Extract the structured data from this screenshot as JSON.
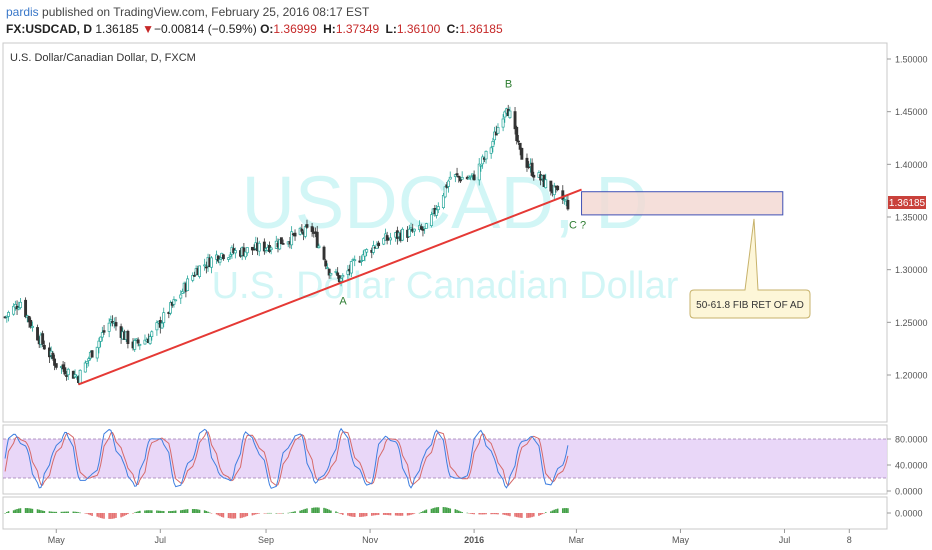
{
  "header": {
    "user": "pardis",
    "published": " published on TradingView.com, February 25, 2016 08:17 EST",
    "symbol": "FX:USDCAD, D",
    "last": "1.36185",
    "arrow": "▼",
    "change": "−0.00814 (−0.59%)",
    "o_label": "O:",
    "o_value": "1.36999",
    "h_label": "H:",
    "h_value": "1.37349",
    "l_label": "L:",
    "l_value": "1.36100",
    "c_label": "C:",
    "c_value": "1.36185"
  },
  "chart": {
    "legend_title": "U.S. Dollar/Canadian Dollar, D, FXCM",
    "watermark_symbol": "USDCAD, D",
    "watermark_name": "U.S. Dollar Canadian Dollar",
    "colors": {
      "up": "#26a69a",
      "down": "#333333",
      "trendline": "#e53935",
      "price_badge": "#c9413b",
      "stoch_k": "#3f7fe0",
      "stoch_d": "#d66a6a",
      "stoch_band": "#e7d3f7",
      "zone_fill": "#f3d9d4",
      "zone_border": "#3f51b5"
    },
    "last_price_label": "1.36185",
    "annotations": {
      "A": "A",
      "B": "B",
      "C": "C ?"
    },
    "callout_text": "50-61.8 FIB RET OF AD"
  },
  "chart_data": {
    "type": "candlestick",
    "price_axis": {
      "ticks": [
        1.5,
        1.45,
        1.4,
        1.35,
        1.3,
        1.25,
        1.2
      ],
      "tick_labels": [
        "1.50000",
        "1.45000",
        "1.40000",
        "1.35000",
        "1.30000",
        "1.25000",
        "1.20000"
      ],
      "range": [
        1.16,
        1.52
      ]
    },
    "stoch_axis": {
      "ticks": [
        80,
        40,
        0
      ],
      "tick_labels": [
        "80.0000",
        "40.0000",
        "0.0000"
      ],
      "upper": 80,
      "lower": 20
    },
    "macd_axis": {
      "tick_labels": [
        "0.0000"
      ]
    },
    "x_axis": {
      "labels": [
        "May",
        "Jul",
        "Sep",
        "Nov",
        "2016",
        "Mar",
        "May",
        "Jul",
        "8"
      ]
    },
    "price_path": [
      [
        "2015-04-01",
        1.255
      ],
      [
        "2015-04-10",
        1.27
      ],
      [
        "2015-04-17",
        1.245
      ],
      [
        "2015-05-01",
        1.21
      ],
      [
        "2015-05-14",
        1.198
      ],
      [
        "2015-05-22",
        1.222
      ],
      [
        "2015-06-02",
        1.252
      ],
      [
        "2015-06-15",
        1.228
      ],
      [
        "2015-06-25",
        1.236
      ],
      [
        "2015-07-10",
        1.27
      ],
      [
        "2015-07-22",
        1.3
      ],
      [
        "2015-08-05",
        1.315
      ],
      [
        "2015-08-20",
        1.318
      ],
      [
        "2015-09-01",
        1.322
      ],
      [
        "2015-09-15",
        1.33
      ],
      [
        "2015-09-28",
        1.338
      ],
      [
        "2015-10-08",
        1.3
      ],
      [
        "2015-10-15",
        1.29
      ],
      [
        "2015-10-26",
        1.312
      ],
      [
        "2015-11-06",
        1.326
      ],
      [
        "2015-11-20",
        1.334
      ],
      [
        "2015-12-04",
        1.338
      ],
      [
        "2015-12-18",
        1.388
      ],
      [
        "2015-12-31",
        1.387
      ],
      [
        "2016-01-10",
        1.413
      ],
      [
        "2016-01-20",
        1.458
      ],
      [
        "2016-01-28",
        1.41
      ],
      [
        "2016-02-05",
        1.392
      ],
      [
        "2016-02-15",
        1.377
      ],
      [
        "2016-02-25",
        1.362
      ]
    ],
    "points": {
      "A": {
        "date": "2015-10-15",
        "price": 1.283
      },
      "B": {
        "date": "2016-01-20",
        "price": 1.469
      },
      "C": {
        "date": "2016-02-26",
        "price": 1.356
      }
    },
    "trendline": [
      [
        "2015-05-14",
        1.191
      ],
      [
        "2016-03-04",
        1.376
      ]
    ],
    "fib_zone": {
      "from": "2016-03-04",
      "to": "2016-06-30",
      "price_high": 1.374,
      "price_low": 1.352
    }
  }
}
